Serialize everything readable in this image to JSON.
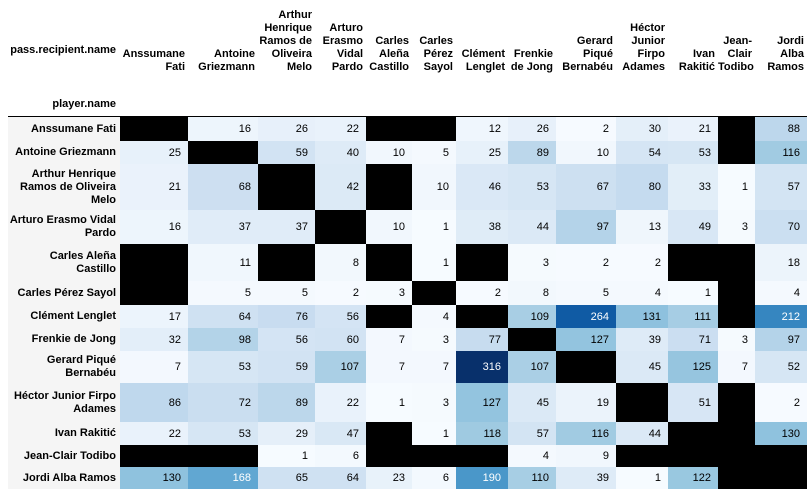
{
  "table": {
    "column_axis_label": "pass.recipient.name",
    "row_axis_label": "player.name",
    "columns": [
      "Anssumane Fati",
      "Antoine Griezmann",
      "Arthur Henrique Ramos de Oliveira Melo",
      "Arturo Erasmo Vidal Pardo",
      "Carles Aleña Castillo",
      "Carles Pérez Sayol",
      "Clément Lenglet",
      "Frenkie de Jong",
      "Gerard Piqué Bernabéu",
      "Héctor Junior Firpo Adames",
      "Ivan Rakitić",
      "Jean-Clair Todibo",
      "Jordi Alba Ramos"
    ],
    "rows": [
      {
        "name": "Anssumane Fati",
        "values": [
          null,
          16,
          26,
          22,
          null,
          null,
          12,
          26,
          2,
          30,
          21,
          null,
          88
        ]
      },
      {
        "name": "Antoine Griezmann",
        "values": [
          25,
          null,
          59,
          40,
          10,
          5,
          25,
          89,
          10,
          54,
          53,
          null,
          116
        ]
      },
      {
        "name": "Arthur Henrique Ramos de Oliveira Melo",
        "values": [
          21,
          68,
          null,
          42,
          null,
          10,
          46,
          53,
          67,
          80,
          33,
          1,
          57
        ]
      },
      {
        "name": "Arturo Erasmo Vidal Pardo",
        "values": [
          16,
          37,
          37,
          null,
          10,
          1,
          38,
          44,
          97,
          13,
          49,
          3,
          70
        ]
      },
      {
        "name": "Carles Aleña Castillo",
        "values": [
          null,
          11,
          null,
          8,
          null,
          1,
          null,
          3,
          2,
          2,
          null,
          null,
          18
        ]
      },
      {
        "name": "Carles Pérez Sayol",
        "values": [
          null,
          5,
          5,
          2,
          3,
          null,
          2,
          8,
          5,
          4,
          1,
          null,
          4
        ]
      },
      {
        "name": "Clément Lenglet",
        "values": [
          17,
          64,
          76,
          56,
          null,
          4,
          null,
          109,
          264,
          131,
          111,
          null,
          212
        ]
      },
      {
        "name": "Frenkie de Jong",
        "values": [
          32,
          98,
          56,
          60,
          7,
          3,
          77,
          null,
          127,
          39,
          71,
          3,
          97
        ]
      },
      {
        "name": "Gerard Piqué Bernabéu",
        "values": [
          7,
          53,
          59,
          107,
          7,
          7,
          316,
          107,
          null,
          45,
          125,
          7,
          52
        ]
      },
      {
        "name": "Héctor Junior Firpo Adames",
        "values": [
          86,
          72,
          89,
          22,
          1,
          3,
          127,
          45,
          19,
          null,
          51,
          null,
          2
        ]
      },
      {
        "name": "Ivan Rakitić",
        "values": [
          22,
          53,
          29,
          47,
          null,
          1,
          118,
          57,
          116,
          44,
          null,
          null,
          130
        ]
      },
      {
        "name": "Jean-Clair Todibo",
        "values": [
          null,
          null,
          1,
          6,
          null,
          null,
          null,
          4,
          9,
          null,
          null,
          null,
          null
        ]
      },
      {
        "name": "Jordi Alba Ramos",
        "values": [
          130,
          168,
          65,
          64,
          23,
          6,
          190,
          110,
          39,
          1,
          122,
          null,
          null
        ]
      }
    ]
  },
  "colors": {
    "scale": "Blues",
    "missing": "#000000",
    "row_header_bg": "#f5f5f5",
    "dark_text_threshold": 170
  }
}
